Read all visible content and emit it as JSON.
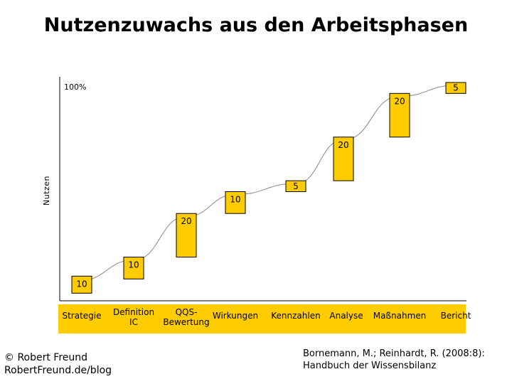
{
  "title": "Nutzenzuwachs aus den Arbeitsphasen",
  "chart_data": {
    "type": "line",
    "ylabel": "Nutzen",
    "xlabel": "",
    "y_tick_label": "100%",
    "ylim": [
      0,
      100
    ],
    "categories": [
      [
        "Strategie"
      ],
      [
        "Definition",
        "IC"
      ],
      [
        "QQS-",
        "Bewertung"
      ],
      [
        "Wirkungen"
      ],
      [
        "Kennzahlen"
      ],
      [
        "Analyse"
      ],
      [
        "Maßnahmen"
      ],
      [
        "Bericht"
      ]
    ],
    "increments": [
      10,
      10,
      20,
      10,
      5,
      20,
      20,
      5
    ],
    "cumulative": [
      10,
      20,
      40,
      50,
      55,
      75,
      95,
      100
    ],
    "colors": {
      "box": "#ffcc00",
      "category_band": "#ffcc00",
      "curve": "#888888",
      "axis": "#000000"
    }
  },
  "footer": {
    "copyright": [
      "© Robert Freund",
      "RobertFreund.de/blog"
    ],
    "citation": [
      "Bornemann, M.; Reinhardt, R. (2008:8):",
      "Handbuch der Wissensbilanz"
    ]
  }
}
